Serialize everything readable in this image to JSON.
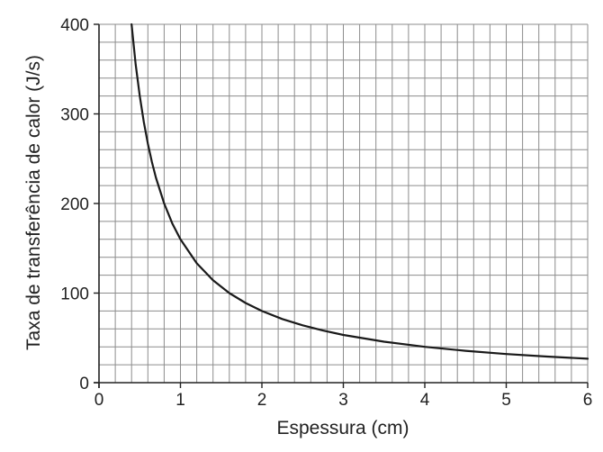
{
  "chart_data": {
    "type": "line",
    "title": "",
    "xlabel": "Espessura (cm)",
    "ylabel": "Taxa de transferência de calor (J/s)",
    "xlim": [
      0,
      6
    ],
    "ylim": [
      0,
      400
    ],
    "x_ticks": [
      "0",
      "1",
      "2",
      "3",
      "4",
      "5",
      "6"
    ],
    "y_ticks": [
      "0",
      "100",
      "200",
      "300",
      "400"
    ],
    "grid": true,
    "minor_grid_step": {
      "x": 0.2,
      "y": 20
    },
    "legend": "none",
    "colors": {
      "line": "#1a1a1a",
      "grid": "#8c8c8c",
      "axis": "#222222"
    },
    "series": [
      {
        "x": [
          0.4,
          0.45,
          0.5,
          0.55,
          0.6,
          0.65,
          0.7,
          0.8,
          0.9,
          1.0,
          1.2,
          1.4,
          1.6,
          1.8,
          2.0,
          2.25,
          2.5,
          2.75,
          3.0,
          3.5,
          4.0,
          4.5,
          5.0,
          5.5,
          6.0
        ],
        "y": [
          400,
          355.6,
          320,
          290.9,
          266.7,
          246.2,
          228.6,
          200,
          177.8,
          160,
          133.3,
          114.3,
          100,
          88.9,
          80,
          71.1,
          64,
          58.2,
          53.3,
          45.7,
          40,
          35.6,
          32,
          29.1,
          26.7
        ]
      }
    ]
  }
}
